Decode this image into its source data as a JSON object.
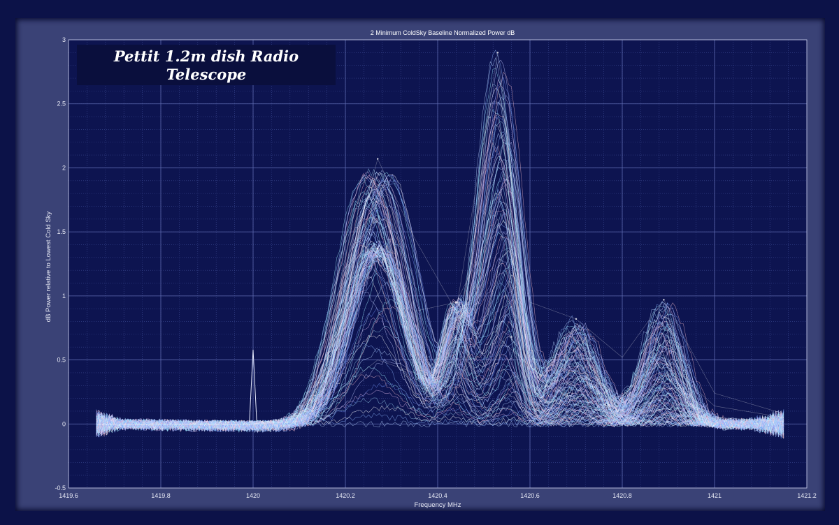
{
  "chart_data": {
    "type": "line",
    "title": "2 Minimum ColdSky Baseline Normalized Power  dB",
    "xlabel": "Frequency MHz",
    "ylabel": "dB Power relative to Lowest Cold Sky",
    "xlim": [
      1419.6,
      1421.2
    ],
    "ylim": [
      -0.5,
      3
    ],
    "x_ticks": [
      "1419.6",
      "1419.8",
      "1420",
      "1420.2",
      "1420.4",
      "1420.6",
      "1420.8",
      "1421",
      "1421.2"
    ],
    "y_ticks": [
      "-0.5",
      "0",
      "0.5",
      "1",
      "1.5",
      "2",
      "2.5",
      "3"
    ],
    "grid": true,
    "minor_grid": true,
    "legend": "none",
    "annotation": "Pettit 1.2m dish Radio Telescope",
    "data_x_range": [
      1419.66,
      1421.15
    ],
    "spike": {
      "x": 1420.0,
      "y": 0.58
    },
    "peaks": [
      {
        "x": 1420.27,
        "y": 2.07
      },
      {
        "x": 1420.27,
        "y": 1.37
      },
      {
        "x": 1420.44,
        "y": 0.95
      },
      {
        "x": 1420.53,
        "y": 2.9
      },
      {
        "x": 1420.56,
        "y": 0.68
      },
      {
        "x": 1420.7,
        "y": 0.82
      },
      {
        "x": 1420.89,
        "y": 0.97
      }
    ],
    "series": [
      {
        "x": [
          1419.66,
          1419.8,
          1420.0,
          1420.1,
          1420.2,
          1420.27,
          1420.35,
          1420.44,
          1420.53,
          1420.6,
          1420.7,
          1420.8,
          1420.89,
          1421.0,
          1421.15
        ],
        "values": [
          0.0,
          0.0,
          0.0,
          0.07,
          1.15,
          2.07,
          1.45,
          0.88,
          2.9,
          0.95,
          0.82,
          0.52,
          0.97,
          0.24,
          0.08
        ]
      },
      {
        "x": [
          1419.66,
          1419.8,
          1420.0,
          1420.1,
          1420.2,
          1420.27,
          1420.35,
          1420.44,
          1420.53,
          1420.6,
          1420.7,
          1420.8,
          1420.89,
          1421.0,
          1421.15
        ],
        "values": [
          0.0,
          0.0,
          0.0,
          0.05,
          0.85,
          1.37,
          0.88,
          0.95,
          1.6,
          0.52,
          0.4,
          0.22,
          0.5,
          0.14,
          0.05
        ]
      },
      {
        "x": [
          1419.66,
          1419.8,
          1420.0,
          1420.1,
          1420.2,
          1420.27,
          1420.35,
          1420.44,
          1420.53,
          1420.6,
          1420.7,
          1420.8,
          1420.89,
          1421.0,
          1421.15
        ],
        "values": [
          0.0,
          0.0,
          0.0,
          0.02,
          0.3,
          0.5,
          0.4,
          0.35,
          0.68,
          0.45,
          0.15,
          0.06,
          0.12,
          0.05,
          0.02
        ]
      }
    ]
  }
}
